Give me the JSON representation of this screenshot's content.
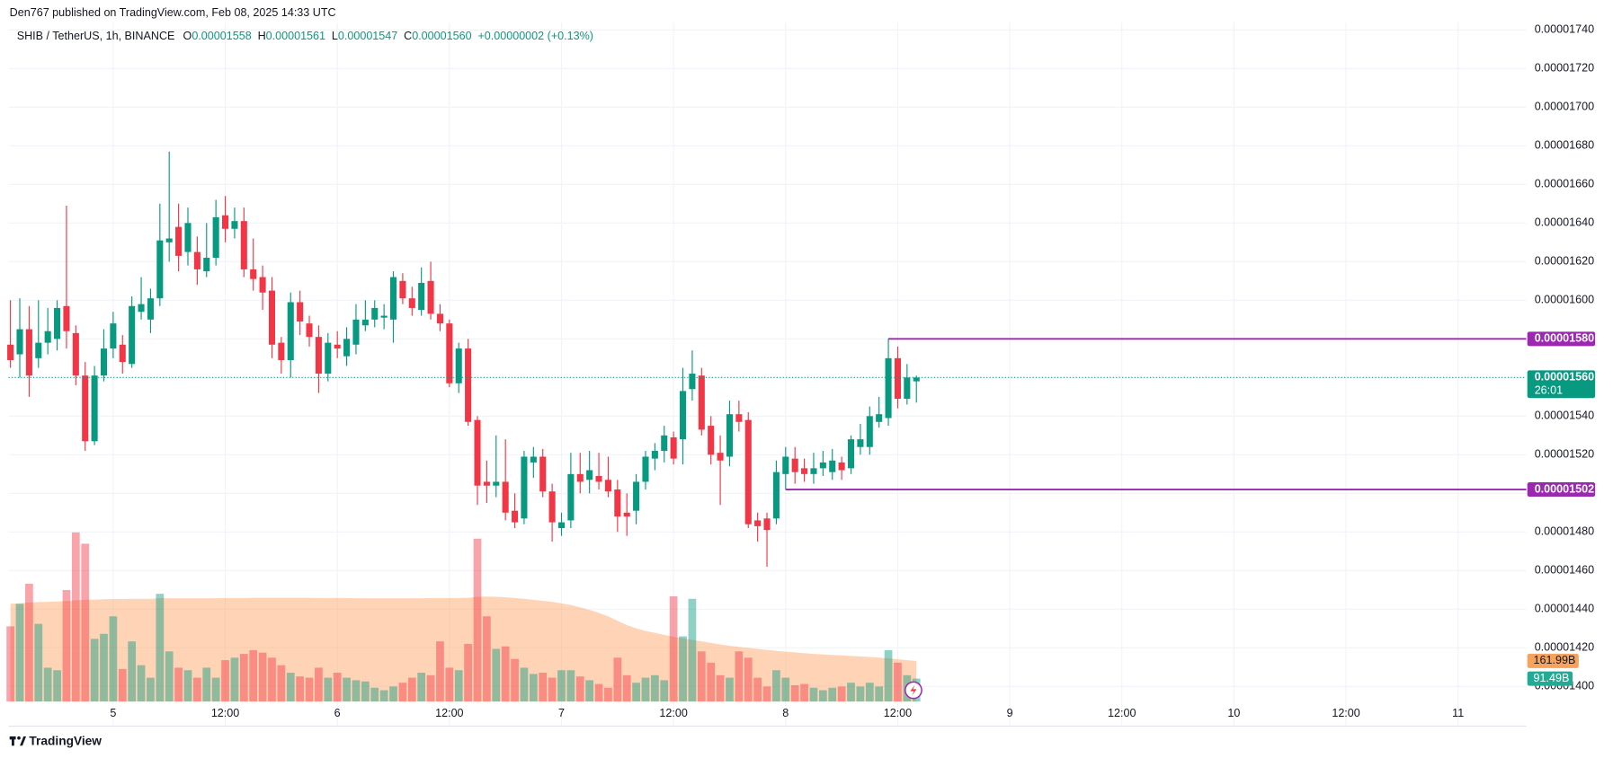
{
  "header": {
    "published": "Den767 published on TradingView.com, Feb 08, 2025 14:33 UTC",
    "legend": {
      "symbol": "SHIB / TetherUS, 1h, BINANCE",
      "open_label": "O",
      "open": "0.00001558",
      "high_label": "H",
      "high": "0.00001561",
      "low_label": "L",
      "low": "0.00001547",
      "close_label": "C",
      "close": "0.00001560",
      "change": "+0.00000002 (+0.13%)"
    }
  },
  "footer": {
    "brand": "TradingView"
  },
  "chart_data": {
    "type": "candlestick",
    "up_color": "#089981",
    "down_color": "#f23645",
    "grid": true,
    "xlim": [
      -0.2,
      162.3
    ],
    "xticks": [
      {
        "value": 11,
        "label": "5"
      },
      {
        "value": 23,
        "label": "12:00"
      },
      {
        "value": 35,
        "label": "6"
      },
      {
        "value": 47,
        "label": "12:00"
      },
      {
        "value": 59,
        "label": "7"
      },
      {
        "value": 71,
        "label": "12:00"
      },
      {
        "value": 83,
        "label": "8"
      },
      {
        "value": 95,
        "label": "12:00"
      },
      {
        "value": 107,
        "label": "9"
      },
      {
        "value": 119,
        "label": "12:00"
      },
      {
        "value": 131,
        "label": "10"
      },
      {
        "value": 143,
        "label": "12:00"
      },
      {
        "value": 155,
        "label": "11"
      }
    ],
    "ylim": [
      1.3922e-05,
      1.7438e-05
    ],
    "yticks": [
      {
        "value": 1.4e-05,
        "label": "0.00001400"
      },
      {
        "value": 1.42e-05,
        "label": "0.00001420"
      },
      {
        "value": 1.44e-05,
        "label": "0.00001440"
      },
      {
        "value": 1.46e-05,
        "label": "0.00001460"
      },
      {
        "value": 1.48e-05,
        "label": "0.00001480"
      },
      {
        "value": 1.5e-05,
        "label": "0.00001500"
      },
      {
        "value": 1.52e-05,
        "label": "0.00001520"
      },
      {
        "value": 1.54e-05,
        "label": "0.00001540"
      },
      {
        "value": 1.56e-05,
        "label": "0.00001560"
      },
      {
        "value": 1.58e-05,
        "label": "0.00001580"
      },
      {
        "value": 1.6e-05,
        "label": "0.00001600"
      },
      {
        "value": 1.62e-05,
        "label": "0.00001620"
      },
      {
        "value": 1.64e-05,
        "label": "0.00001640"
      },
      {
        "value": 1.66e-05,
        "label": "0.00001660"
      },
      {
        "value": 1.68e-05,
        "label": "0.00001680"
      },
      {
        "value": 1.7e-05,
        "label": "0.00001700"
      },
      {
        "value": 1.72e-05,
        "label": "0.00001720"
      },
      {
        "value": 1.74e-05,
        "label": "0.00001740"
      }
    ],
    "open": [
      1.577e-05,
      1.572e-05,
      1.585e-05,
      1.57e-05,
      1.578e-05,
      1.58e-05,
      1.597e-05,
      1.583e-05,
      1.561e-05,
      1.527e-05,
      1.561e-05,
      1.575e-05,
      1.577e-05,
      1.567e-05,
      1.594e-05,
      1.59e-05,
      1.601e-05,
      1.63e-05,
      1.638e-05,
      1.625e-05,
      1.625e-05,
      1.615e-05,
      1.622e-05,
      1.644e-05,
      1.637e-05,
      1.641e-05,
      1.616e-05,
      1.612e-05,
      1.605e-05,
      1.578e-05,
      1.569e-05,
      1.599e-05,
      1.588e-05,
      1.581e-05,
      1.562e-05,
      1.577e-05,
      1.571e-05,
      1.577e-05,
      1.587e-05,
      1.59e-05,
      1.591e-05,
      1.59e-05,
      1.61e-05,
      1.601e-05,
      1.595e-05,
      1.61e-05,
      1.593e-05,
      1.588e-05,
      1.557e-05,
      1.575e-05,
      1.538e-05,
      1.506e-05,
      1.504e-05,
      1.506e-05,
      1.491e-05,
      1.487e-05,
      1.516e-05,
      1.519e-05,
      1.501e-05,
      1.482e-05,
      1.486e-05,
      1.51e-05,
      1.507e-05,
      1.509e-05,
      1.507e-05,
      1.502e-05,
      1.49e-05,
      1.491e-05,
      1.506e-05,
      1.518e-05,
      1.522e-05,
      1.529e-05,
      1.528e-05,
      1.554e-05,
      1.561e-05,
      1.535e-05,
      1.521e-05,
      1.519e-05,
      1.541e-05,
      1.538e-05,
      1.486e-05,
      1.487e-05,
      1.487e-05,
      1.51e-05,
      1.518e-05,
      1.513e-05,
      1.51e-05,
      1.513e-05,
      1.511e-05,
      1.516e-05,
      1.513e-05,
      1.524e-05,
      1.524e-05,
      1.537e-05,
      1.539e-05,
      1.57e-05,
      1.549e-05,
      1.558e-05
    ],
    "high": [
      1.6e-05,
      1.601e-05,
      1.597e-05,
      1.6e-05,
      1.596e-05,
      1.6e-05,
      1.649e-05,
      1.587e-05,
      1.568e-05,
      1.566e-05,
      1.585e-05,
      1.594e-05,
      1.582e-05,
      1.602e-05,
      1.612e-05,
      1.606e-05,
      1.65e-05,
      1.677e-05,
      1.65e-05,
      1.648e-05,
      1.633e-05,
      1.64e-05,
      1.652e-05,
      1.654e-05,
      1.648e-05,
      1.648e-05,
      1.632e-05,
      1.618e-05,
      1.612e-05,
      1.581e-05,
      1.604e-05,
      1.605e-05,
      1.592e-05,
      1.587e-05,
      1.583e-05,
      1.584e-05,
      1.586e-05,
      1.598e-05,
      1.6e-05,
      1.6e-05,
      1.598e-05,
      1.615e-05,
      1.614e-05,
      1.607e-05,
      1.617e-05,
      1.62e-05,
      1.598e-05,
      1.59e-05,
      1.578e-05,
      1.58e-05,
      1.54e-05,
      1.517e-05,
      1.53e-05,
      1.528e-05,
      1.5e-05,
      1.522e-05,
      1.524e-05,
      1.523e-05,
      1.505e-05,
      1.49e-05,
      1.521e-05,
      1.521e-05,
      1.522e-05,
      1.521e-05,
      1.519e-05,
      1.507e-05,
      1.5e-05,
      1.51e-05,
      1.522e-05,
      1.526e-05,
      1.535e-05,
      1.532e-05,
      1.565e-05,
      1.574e-05,
      1.565e-05,
      1.54e-05,
      1.53e-05,
      1.548e-05,
      1.548e-05,
      1.542e-05,
      1.49e-05,
      1.49e-05,
      1.517e-05,
      1.524e-05,
      1.524e-05,
      1.518e-05,
      1.521e-05,
      1.522e-05,
      1.523e-05,
      1.519e-05,
      1.53e-05,
      1.536e-05,
      1.545e-05,
      1.55e-05,
      1.58e-05,
      1.576e-05,
      1.567e-05,
      1.561e-05
    ],
    "low": [
      1.565e-05,
      1.56e-05,
      1.55e-05,
      1.565e-05,
      1.572e-05,
      1.574e-05,
      1.575e-05,
      1.556e-05,
      1.522e-05,
      1.525e-05,
      1.558e-05,
      1.57e-05,
      1.562e-05,
      1.565e-05,
      1.59e-05,
      1.583e-05,
      1.597e-05,
      1.62e-05,
      1.615e-05,
      1.618e-05,
      1.608e-05,
      1.612e-05,
      1.618e-05,
      1.63e-05,
      1.632e-05,
      1.612e-05,
      1.605e-05,
      1.595e-05,
      1.57e-05,
      1.562e-05,
      1.56e-05,
      1.582e-05,
      1.576e-05,
      1.552e-05,
      1.558e-05,
      1.57e-05,
      1.566e-05,
      1.572e-05,
      1.584e-05,
      1.586e-05,
      1.585e-05,
      1.578e-05,
      1.598e-05,
      1.592e-05,
      1.592e-05,
      1.59e-05,
      1.584e-05,
      1.555e-05,
      1.552e-05,
      1.535e-05,
      1.494e-05,
      1.495e-05,
      1.498e-05,
      1.486e-05,
      1.482e-05,
      1.484e-05,
      1.508e-05,
      1.498e-05,
      1.475e-05,
      1.478e-05,
      1.482e-05,
      1.5e-05,
      1.5e-05,
      1.502e-05,
      1.498e-05,
      1.48e-05,
      1.478e-05,
      1.484e-05,
      1.502e-05,
      1.512e-05,
      1.516e-05,
      1.515e-05,
      1.515e-05,
      1.548e-05,
      1.53e-05,
      1.515e-05,
      1.494e-05,
      1.514e-05,
      1.532e-05,
      1.482e-05,
      1.475e-05,
      1.462e-05,
      1.484e-05,
      1.502e-05,
      1.505e-05,
      1.506e-05,
      1.505e-05,
      1.509e-05,
      1.507e-05,
      1.507e-05,
      1.51e-05,
      1.52e-05,
      1.52e-05,
      1.534e-05,
      1.535e-05,
      1.544e-05,
      1.546e-05,
      1.547e-05
    ],
    "close": [
      1.569e-05,
      1.585e-05,
      1.561e-05,
      1.578e-05,
      1.584e-05,
      1.596e-05,
      1.584e-05,
      1.561e-05,
      1.527e-05,
      1.561e-05,
      1.575e-05,
      1.588e-05,
      1.568e-05,
      1.597e-05,
      1.598e-05,
      1.601e-05,
      1.631e-05,
      1.632e-05,
      1.623e-05,
      1.64e-05,
      1.616e-05,
      1.622e-05,
      1.643e-05,
      1.637e-05,
      1.641e-05,
      1.616e-05,
      1.611e-05,
      1.604e-05,
      1.577e-05,
      1.569e-05,
      1.599e-05,
      1.589e-05,
      1.581e-05,
      1.562e-05,
      1.578e-05,
      1.575e-05,
      1.58e-05,
      1.59e-05,
      1.59e-05,
      1.596e-05,
      1.592e-05,
      1.612e-05,
      1.601e-05,
      1.596e-05,
      1.609e-05,
      1.593e-05,
      1.588e-05,
      1.557e-05,
      1.575e-05,
      1.537e-05,
      1.504e-05,
      1.504e-05,
      1.506e-05,
      1.49e-05,
      1.485e-05,
      1.519e-05,
      1.519e-05,
      1.501e-05,
      1.485e-05,
      1.485e-05,
      1.51e-05,
      1.506e-05,
      1.512e-05,
      1.506e-05,
      1.501e-05,
      1.488e-05,
      1.488e-05,
      1.506e-05,
      1.519e-05,
      1.522e-05,
      1.53e-05,
      1.518e-05,
      1.553e-05,
      1.562e-05,
      1.533e-05,
      1.52e-05,
      1.517e-05,
      1.541e-05,
      1.537e-05,
      1.484e-05,
      1.483e-05,
      1.481e-05,
      1.511e-05,
      1.519e-05,
      1.511e-05,
      1.51e-05,
      1.513e-05,
      1.516e-05,
      1.517e-05,
      1.512e-05,
      1.528e-05,
      1.528e-05,
      1.54e-05,
      1.541e-05,
      1.57e-05,
      1.549e-05,
      1.56e-05,
      1.56e-05
    ],
    "volume": {
      "up_color": "rgba(8,153,129,0.45)",
      "down_color": "rgba(242,54,69,0.45)",
      "ylim": [
        0,
        2710
      ],
      "label": "91.49B",
      "label_color": "#22ab94",
      "values": [
        300,
        390,
        470,
        310,
        135,
        125,
        445,
        675,
        630,
        250,
        270,
        340,
        130,
        240,
        145,
        95,
        430,
        200,
        135,
        125,
        95,
        135,
        95,
        165,
        175,
        190,
        205,
        195,
        175,
        145,
        115,
        100,
        95,
        135,
        95,
        115,
        95,
        85,
        80,
        55,
        45,
        60,
        75,
        95,
        115,
        105,
        240,
        135,
        125,
        230,
        650,
        340,
        210,
        220,
        170,
        135,
        110,
        115,
        95,
        125,
        125,
        100,
        85,
        70,
        55,
        175,
        105,
        75,
        95,
        105,
        85,
        420,
        260,
        410,
        200,
        155,
        105,
        95,
        200,
        175,
        95,
        60,
        125,
        95,
        65,
        70,
        55,
        45,
        55,
        60,
        75,
        60,
        75,
        60,
        205,
        155,
        105,
        91.49
      ]
    },
    "volume_ma": {
      "color": "rgba(255,152,80,0.42)",
      "label": "161.99B",
      "label_color": "#f7a35c",
      "values": [
        390,
        392,
        395,
        397,
        398,
        399,
        401,
        404,
        406,
        407,
        408,
        409,
        409,
        410,
        410,
        410,
        412,
        412,
        412,
        412,
        412,
        412,
        412,
        413,
        413,
        413,
        414,
        414,
        414,
        414,
        414,
        414,
        414,
        413,
        413,
        413,
        413,
        412,
        412,
        412,
        412,
        412,
        412,
        412,
        412,
        413,
        413,
        413,
        413,
        414,
        418,
        419,
        418,
        416,
        413,
        410,
        406,
        402,
        398,
        392,
        385,
        376,
        366,
        354,
        340,
        322,
        305,
        292,
        282,
        274,
        266,
        258,
        252,
        246,
        240,
        234,
        228,
        222,
        218,
        214,
        210,
        206,
        202,
        199,
        196,
        193,
        190,
        188,
        186,
        184,
        182,
        180,
        178,
        175,
        172,
        169,
        165,
        161.99
      ]
    },
    "price_lines": [
      {
        "value": 1.58e-05,
        "label": "0.00001580",
        "start": 94,
        "color": "#9c27b0"
      },
      {
        "value": 1.502e-05,
        "label": "0.00001502",
        "start": 83,
        "color": "#9c27b0"
      }
    ],
    "last_price": {
      "value": 1.56e-05,
      "label": "0.00001560",
      "countdown": "26:01",
      "color": "#089981"
    }
  }
}
